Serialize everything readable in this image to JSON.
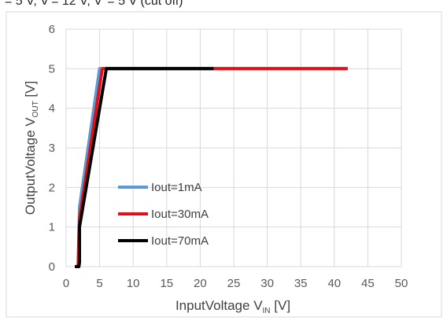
{
  "header_text": "= 5 V, V = 12 V, V  = 5 V (cut off)",
  "chart_data": {
    "type": "line",
    "title": "",
    "xlabel": "InputVoltage V",
    "xlabel_sub": "IN",
    "xlabel_unit": " [V]",
    "ylabel": "OutputVoltage V",
    "ylabel_sub": "OUT",
    "ylabel_unit": " [V]",
    "xlim": [
      0,
      50
    ],
    "ylim": [
      0,
      6
    ],
    "xticks": [
      0,
      5,
      10,
      15,
      20,
      25,
      30,
      35,
      40,
      45,
      50
    ],
    "yticks": [
      0,
      1,
      2,
      3,
      4,
      5,
      6
    ],
    "grid": true,
    "legend_placement": "center-left",
    "series": [
      {
        "name": "Iout=1mA",
        "color": "#5b9bd5",
        "x": [
          1.5,
          1.8,
          2.0,
          5.0,
          42.0
        ],
        "y": [
          0,
          0,
          1.5,
          5.0,
          5.0
        ]
      },
      {
        "name": "Iout=30mA",
        "color": "#e0101a",
        "x": [
          1.5,
          1.8,
          2.0,
          5.4,
          42.0
        ],
        "y": [
          0,
          0,
          1.2,
          5.0,
          5.0
        ]
      },
      {
        "name": "Iout=70mA",
        "color": "#000000",
        "x": [
          1.3,
          1.9,
          2.0,
          2.0,
          6.0,
          22.0
        ],
        "y": [
          0,
          0,
          0.1,
          1.0,
          5.0,
          5.0
        ]
      }
    ]
  }
}
